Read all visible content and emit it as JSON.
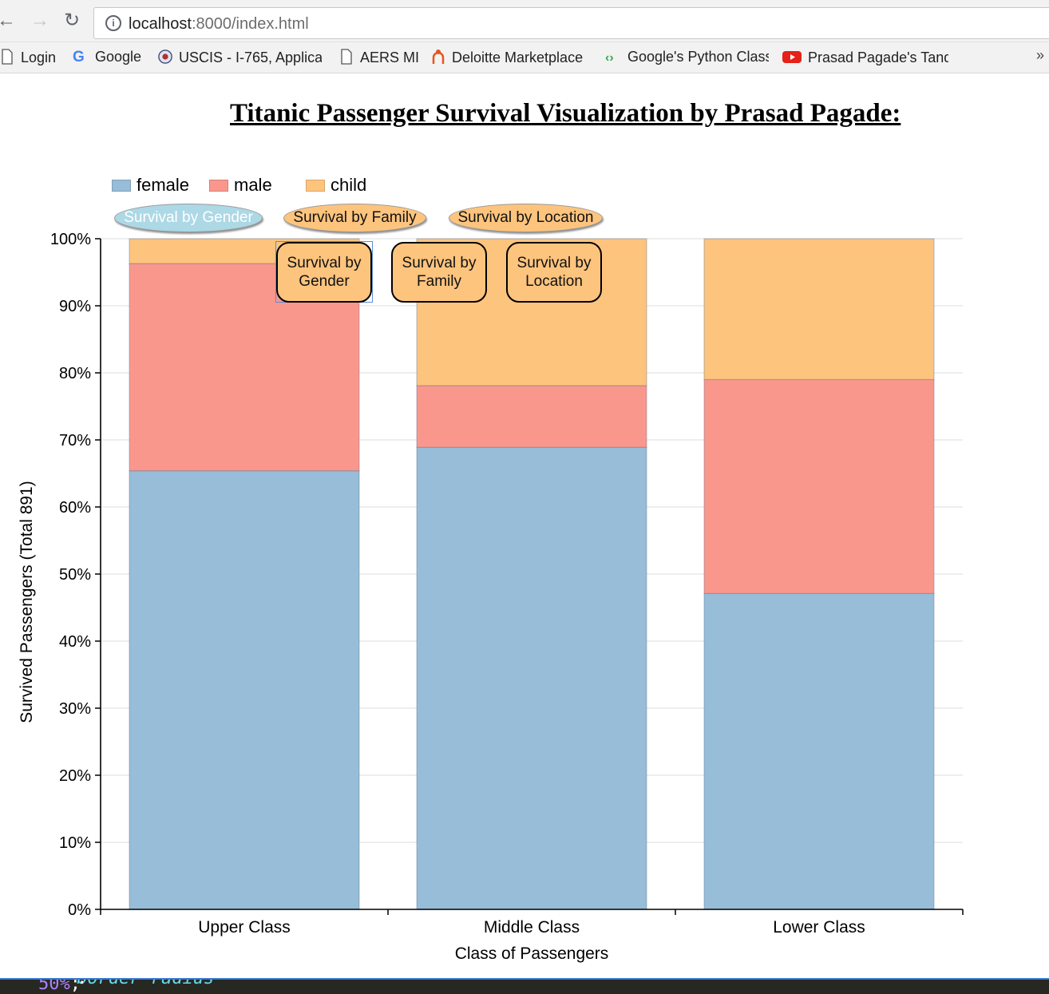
{
  "browser": {
    "url_host": "localhost",
    "url_path": ":8000/index.html",
    "bookmarks": [
      {
        "label": "Login",
        "icon": "page-icon"
      },
      {
        "label": "Google",
        "icon": "google-icon"
      },
      {
        "label": "USCIS - I-765, Applica",
        "icon": "uscis-seal-icon"
      },
      {
        "label": "AERS MI",
        "icon": "page-icon"
      },
      {
        "label": "Deloitte Marketplace",
        "icon": "marketplace-icon"
      },
      {
        "label": "Google's Python Class",
        "icon": "code-brackets-icon"
      },
      {
        "label": "Prasad Pagade's Tand",
        "icon": "youtube-icon"
      }
    ],
    "more": "»"
  },
  "page": {
    "title": "Titanic Passenger Survival Visualization by Prasad Pagade:"
  },
  "controls": {
    "buttons": [
      {
        "label": "Survival by Gender",
        "state": "active"
      },
      {
        "label": "Survival by Family",
        "state": "inactive"
      },
      {
        "label": "Survival by Location",
        "state": "inactive"
      }
    ],
    "annotations": [
      {
        "line1": "Survival by",
        "line2": "Gender"
      },
      {
        "line1": "Survival by",
        "line2": "Family"
      },
      {
        "line1": "Survival by",
        "line2": "Location"
      }
    ]
  },
  "colors": {
    "female": "#97bdd8",
    "male": "#fa978c",
    "child": "#fdc47e",
    "active_button": "#add8e6"
  },
  "chart_data": {
    "type": "bar",
    "stacked": true,
    "categories": [
      "Upper Class",
      "Middle Class",
      "Lower Class"
    ],
    "series": [
      {
        "name": "female",
        "values": [
          65.4,
          68.9,
          47.1
        ]
      },
      {
        "name": "male",
        "values": [
          30.9,
          9.2,
          31.9
        ]
      },
      {
        "name": "child",
        "values": [
          3.7,
          21.9,
          21.0
        ]
      }
    ],
    "xlabel": "Class of Passengers",
    "ylabel": "Survived Passengers (Total 891)",
    "ylim": [
      0,
      100
    ],
    "yticks": [
      "0%",
      "10%",
      "20%",
      "30%",
      "40%",
      "50%",
      "60%",
      "70%",
      "80%",
      "90%",
      "100%"
    ],
    "grid": true,
    "legend": "top-left"
  },
  "editor_strip": {
    "property": "border-radius",
    "colon": ": ",
    "value": "50%",
    "semicolon": ";"
  }
}
